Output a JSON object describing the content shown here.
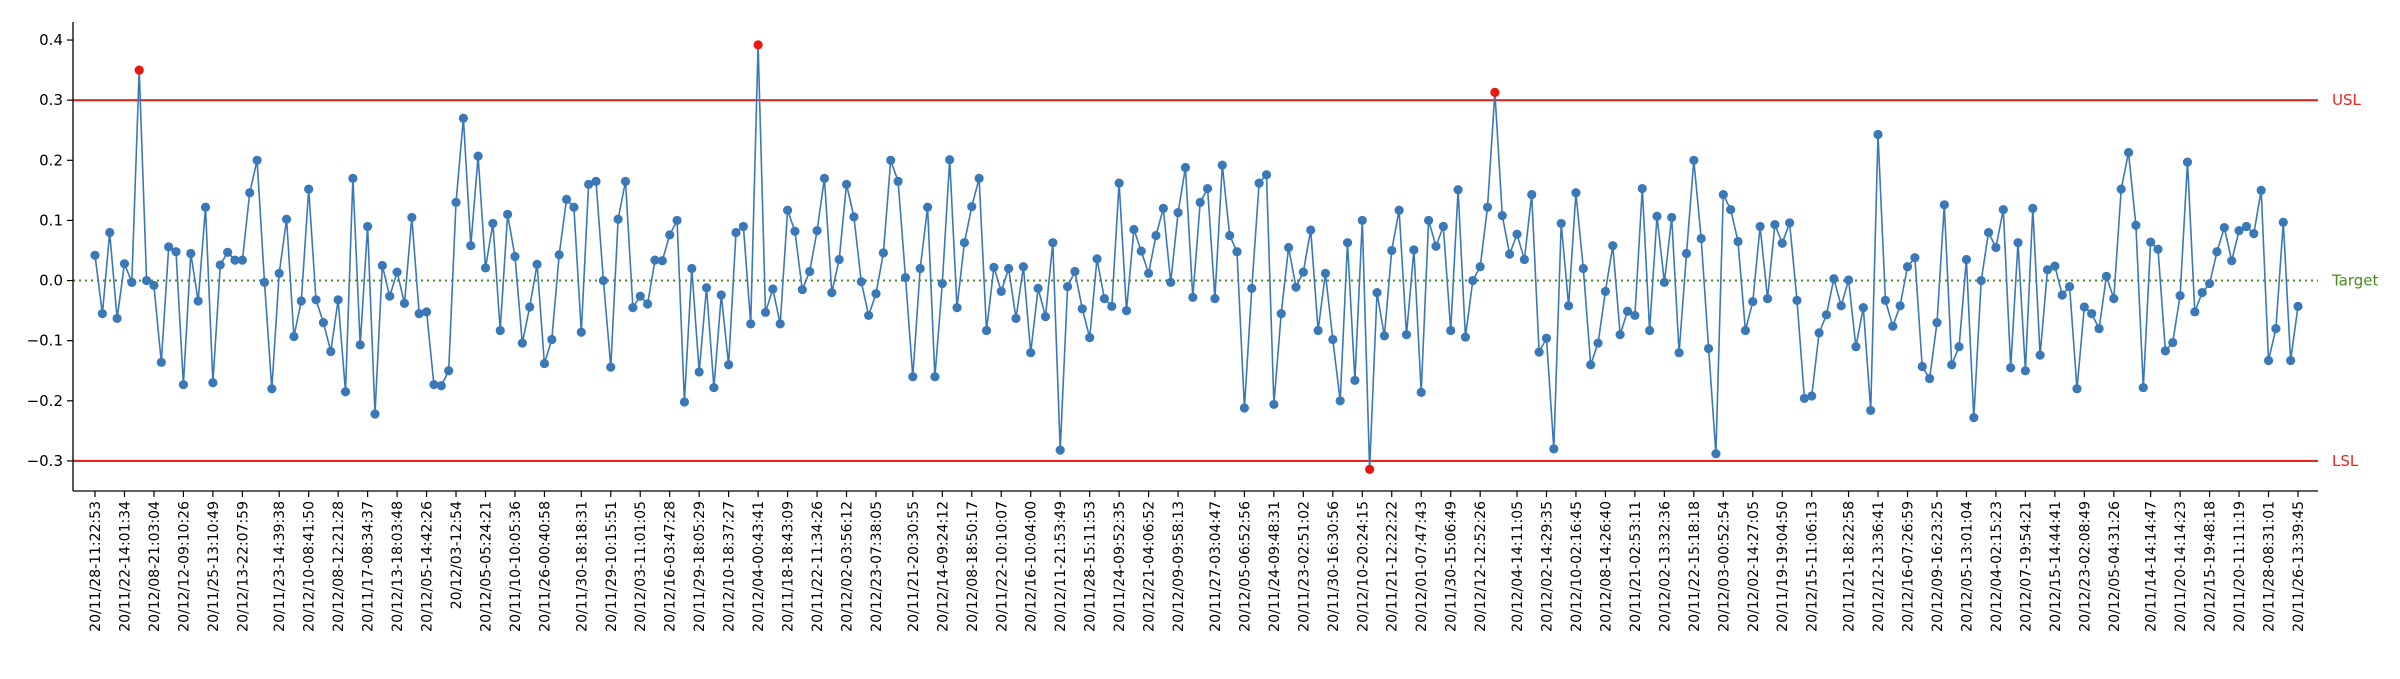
{
  "chart_data": {
    "type": "line",
    "title": "",
    "xlabel": "",
    "ylabel": "",
    "ylim": [
      -0.35,
      0.43
    ],
    "yticks": [
      -0.3,
      -0.2,
      -0.1,
      0.0,
      0.1,
      0.2,
      0.3,
      0.4
    ],
    "ytick_labels": [
      "−0.3",
      "−0.2",
      "−0.1",
      "0.0",
      "0.1",
      "0.2",
      "0.3",
      "0.4"
    ],
    "grid": false,
    "x_tick_labels": [
      "20/11/28-11:22:53",
      "20/11/22-14:01:34",
      "20/12/08-21:03:04",
      "20/12/12-09:10:26",
      "20/11/25-13:10:49",
      "20/12/13-22:07:59",
      "20/11/23-14:39:38",
      "20/12/10-08:41:50",
      "20/12/08-12:21:28",
      "20/11/17-08:34:37",
      "20/12/13-18:03:48",
      "20/12/05-14:42:26",
      "20/12/03-12:54",
      "20/12/05-05:24:21",
      "20/11/10-10:05:36",
      "20/11/26-00:40:58",
      "20/11/30-18:18:31",
      "20/11/29-10:15:51",
      "20/12/03-11:01:05",
      "20/12/16-03:47:28",
      "20/11/29-18:05:29",
      "20/12/10-18:37:27",
      "20/12/04-00:43:41",
      "20/11/18-18:43:09",
      "20/11/22-11:34:26",
      "20/12/02-03:56:12",
      "20/12/23-07:38:05",
      "20/11/21-20:30:55",
      "20/12/14-09:24:12",
      "20/12/08-18:50:17",
      "20/11/22-10:10:07",
      "20/12/16-10:04:00",
      "20/12/11-21:53:49",
      "20/11/28-15:11:53",
      "20/11/24-09:52:35",
      "20/12/21-04:06:52",
      "20/12/09-09:58:13",
      "20/11/27-03:04:47",
      "20/12/05-06:52:56",
      "20/11/24-09:48:31",
      "20/11/23-02:51:02",
      "20/11/30-16:30:56",
      "20/12/10-20:24:15",
      "20/11/21-12:22:22",
      "20/12/01-07:47:43",
      "20/11/30-15:06:49",
      "20/12/12-12:52:26",
      "20/12/04-14:11:05",
      "20/12/02-14:29:35",
      "20/12/10-02:16:45",
      "20/12/08-14:26:40",
      "20/11/21-02:53:11",
      "20/12/02-13:32:36",
      "20/11/22-15:18:18",
      "20/12/03-00:52:54",
      "20/12/02-14:27:05",
      "20/11/19-19:04:50",
      "20/12/15-11:06:13",
      "20/11/21-18:22:58",
      "20/12/12-13:36:41",
      "20/12/16-07:26:59",
      "20/12/09-16:23:25",
      "20/12/05-13:01:04",
      "20/12/04-02:15:23",
      "20/12/07-19:54:21",
      "20/12/15-14:44:41",
      "20/12/23-02:08:49",
      "20/12/05-04:31:26",
      "20/11/14-14:14:47",
      "20/11/20-14:14:23",
      "20/12/15-19:48:18",
      "20/11/20-11:11:19",
      "20/11/28-08:31:01",
      "20/11/26-13:39:45"
    ],
    "series": [
      {
        "values": [
          0.042,
          -0.055,
          0.08,
          -0.063,
          0.028,
          -0.003,
          0.35,
          0.0,
          -0.008,
          -0.136,
          0.056,
          0.048,
          -0.173,
          0.045,
          -0.034,
          0.122,
          -0.17,
          0.026,
          0.047,
          0.034,
          0.034,
          0.146,
          0.2,
          -0.003,
          -0.18,
          0.012,
          0.102,
          -0.093,
          -0.034,
          0.152,
          -0.032,
          -0.07,
          -0.118,
          -0.032,
          -0.185,
          0.17,
          -0.107,
          0.09,
          -0.222,
          0.025,
          -0.026,
          0.014,
          -0.038,
          0.105,
          -0.055,
          -0.052,
          -0.173,
          -0.175,
          -0.15,
          0.13,
          0.27,
          0.058,
          0.207,
          0.021,
          0.095,
          -0.083,
          0.11,
          0.04,
          -0.104,
          -0.044,
          0.027,
          -0.138,
          -0.098,
          0.043,
          0.135,
          0.122,
          -0.086,
          0.16,
          0.165,
          0.0,
          -0.144,
          0.102,
          0.165,
          -0.045,
          -0.026,
          -0.039,
          0.034,
          0.033,
          0.076,
          0.1,
          -0.202,
          0.02,
          -0.152,
          -0.012,
          -0.178,
          -0.024,
          -0.14,
          0.08,
          0.09,
          -0.072,
          0.392,
          -0.053,
          -0.014,
          -0.072,
          0.117,
          0.082,
          -0.015,
          0.015,
          0.083,
          0.17,
          -0.02,
          0.035,
          0.16,
          0.106,
          -0.002,
          -0.058,
          -0.022,
          0.046,
          0.2,
          0.165,
          0.005,
          -0.16,
          0.02,
          0.122,
          -0.16,
          -0.005,
          0.201,
          -0.045,
          0.063,
          0.123,
          0.17,
          -0.083,
          0.022,
          -0.018,
          0.02,
          -0.063,
          0.023,
          -0.12,
          -0.013,
          -0.06,
          0.063,
          -0.282,
          -0.01,
          0.015,
          -0.047,
          -0.095,
          0.036,
          -0.03,
          -0.043,
          0.162,
          -0.05,
          0.085,
          0.049,
          0.012,
          0.075,
          0.12,
          -0.003,
          0.113,
          0.188,
          -0.028,
          0.13,
          0.153,
          -0.03,
          0.192,
          0.075,
          0.048,
          -0.212,
          -0.013,
          0.162,
          0.176,
          -0.206,
          -0.055,
          0.055,
          -0.011,
          0.014,
          0.084,
          -0.083,
          0.012,
          -0.098,
          -0.2,
          0.063,
          -0.166,
          0.1,
          -0.314,
          -0.02,
          -0.092,
          0.05,
          0.117,
          -0.09,
          0.051,
          -0.186,
          0.1,
          0.057,
          0.09,
          -0.083,
          0.151,
          -0.094,
          0.0,
          0.023,
          0.122,
          0.313,
          0.108,
          0.044,
          0.077,
          0.035,
          0.143,
          -0.119,
          -0.096,
          -0.28,
          0.095,
          -0.042,
          0.146,
          0.02,
          -0.14,
          -0.104,
          -0.018,
          0.058,
          -0.09,
          -0.051,
          -0.058,
          0.153,
          -0.083,
          0.107,
          -0.003,
          0.105,
          -0.12,
          0.045,
          0.2,
          0.07,
          -0.113,
          -0.288,
          0.143,
          0.118,
          0.065,
          -0.083,
          -0.035,
          0.09,
          -0.03,
          0.093,
          0.062,
          0.096,
          -0.033,
          -0.196,
          -0.192,
          -0.087,
          -0.057,
          0.003,
          -0.042,
          0.001,
          -0.11,
          -0.045,
          -0.216,
          0.243,
          -0.033,
          -0.076,
          -0.042,
          0.023,
          0.038,
          -0.143,
          -0.163,
          -0.07,
          0.126,
          -0.14,
          -0.11,
          0.035,
          -0.228,
          0.0,
          0.08,
          0.055,
          0.118,
          -0.145,
          0.063,
          -0.15,
          0.12,
          -0.124,
          0.018,
          0.024,
          -0.024,
          -0.01,
          -0.18,
          -0.044,
          -0.055,
          -0.08,
          0.007,
          -0.03,
          0.152,
          0.213,
          0.092,
          -0.178,
          0.064,
          0.052,
          -0.117,
          -0.103,
          -0.025,
          0.197,
          -0.052,
          -0.02,
          -0.005,
          0.048,
          0.088,
          0.033,
          0.083,
          0.09,
          0.078,
          0.15,
          -0.133,
          -0.08,
          0.097,
          -0.133,
          -0.043
        ]
      }
    ],
    "reference_lines": [
      {
        "label": "USL",
        "value": 0.3,
        "color": "#e8261d",
        "style": "solid"
      },
      {
        "label": "Target",
        "value": 0.0,
        "color": "#4a8a1c",
        "style": "dotted"
      },
      {
        "label": "LSL",
        "value": -0.3,
        "color": "#e8261d",
        "style": "solid"
      }
    ],
    "colors": {
      "series": "#3a78b8",
      "out_of_spec": "#e8180f",
      "axis": "#000000"
    }
  }
}
